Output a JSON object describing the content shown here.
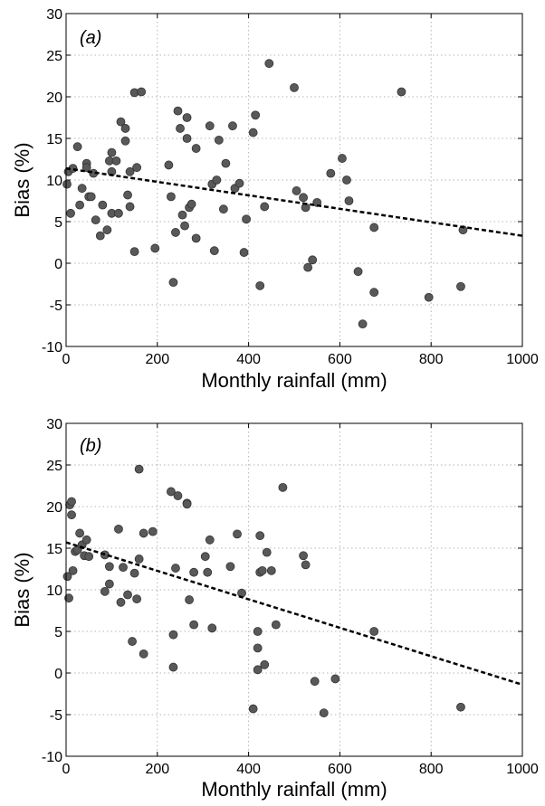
{
  "chart_data": [
    {
      "type": "scatter",
      "panel_label": "(a)",
      "xlabel": "Monthly rainfall (mm)",
      "ylabel": "Bias (%)",
      "xlim": [
        0,
        1000
      ],
      "ylim": [
        -10,
        30
      ],
      "xticks": [
        0,
        200,
        400,
        600,
        800,
        1000
      ],
      "yticks": [
        -10,
        -5,
        0,
        5,
        10,
        15,
        20,
        25,
        30
      ],
      "grid": true,
      "fit_line": [
        [
          0,
          11.4
        ],
        [
          1000,
          3.3
        ]
      ],
      "points": [
        [
          2,
          9.5
        ],
        [
          5,
          11
        ],
        [
          10,
          6
        ],
        [
          15,
          11.4
        ],
        [
          25,
          14
        ],
        [
          30,
          7
        ],
        [
          35,
          9
        ],
        [
          45,
          12
        ],
        [
          45,
          11.5
        ],
        [
          50,
          8
        ],
        [
          55,
          8
        ],
        [
          60,
          10.8
        ],
        [
          65,
          5.2
        ],
        [
          75,
          3.3
        ],
        [
          80,
          7
        ],
        [
          90,
          4
        ],
        [
          95,
          12.3
        ],
        [
          100,
          11
        ],
        [
          100,
          13.3
        ],
        [
          100,
          6
        ],
        [
          110,
          12.3
        ],
        [
          115,
          6
        ],
        [
          120,
          17
        ],
        [
          130,
          16.2
        ],
        [
          130,
          14.7
        ],
        [
          135,
          8.2
        ],
        [
          140,
          11
        ],
        [
          140,
          6.8
        ],
        [
          150,
          1.4
        ],
        [
          150,
          20.5
        ],
        [
          155,
          11.5
        ],
        [
          165,
          20.6
        ],
        [
          195,
          1.8
        ],
        [
          225,
          11.8
        ],
        [
          230,
          8
        ],
        [
          235,
          -2.3
        ],
        [
          240,
          3.7
        ],
        [
          245,
          18.3
        ],
        [
          250,
          16.2
        ],
        [
          255,
          5.8
        ],
        [
          260,
          4.5
        ],
        [
          265,
          17.5
        ],
        [
          265,
          15
        ],
        [
          270,
          6.7
        ],
        [
          275,
          7.1
        ],
        [
          285,
          13.8
        ],
        [
          285,
          3
        ],
        [
          315,
          16.5
        ],
        [
          320,
          9.5
        ],
        [
          325,
          1.5
        ],
        [
          330,
          10
        ],
        [
          335,
          14.8
        ],
        [
          345,
          6.5
        ],
        [
          350,
          12
        ],
        [
          365,
          16.5
        ],
        [
          370,
          9
        ],
        [
          380,
          9.6
        ],
        [
          390,
          1.3
        ],
        [
          395,
          5.3
        ],
        [
          410,
          15.7
        ],
        [
          415,
          17.8
        ],
        [
          425,
          -2.7
        ],
        [
          435,
          6.8
        ],
        [
          445,
          24
        ],
        [
          500,
          21.1
        ],
        [
          505,
          8.7
        ],
        [
          520,
          7.9
        ],
        [
          525,
          6.7
        ],
        [
          530,
          -0.5
        ],
        [
          540,
          0.4
        ],
        [
          550,
          7.3
        ],
        [
          580,
          10.8
        ],
        [
          605,
          12.6
        ],
        [
          615,
          10
        ],
        [
          620,
          7.5
        ],
        [
          640,
          -1
        ],
        [
          650,
          -7.3
        ],
        [
          675,
          4.3
        ],
        [
          675,
          -3.5
        ],
        [
          735,
          20.6
        ],
        [
          795,
          -4.1
        ],
        [
          865,
          -2.8
        ],
        [
          870,
          4
        ]
      ]
    },
    {
      "type": "scatter",
      "panel_label": "(b)",
      "xlabel": "Monthly rainfall (mm)",
      "ylabel": "Bias (%)",
      "xlim": [
        0,
        1000
      ],
      "ylim": [
        -10,
        30
      ],
      "xticks": [
        0,
        200,
        400,
        600,
        800,
        1000
      ],
      "yticks": [
        -10,
        -5,
        0,
        5,
        10,
        15,
        20,
        25,
        30
      ],
      "grid": true,
      "fit_line": [
        [
          0,
          15.7
        ],
        [
          1000,
          -1.4
        ]
      ],
      "points": [
        [
          3,
          11.6
        ],
        [
          6,
          9
        ],
        [
          8,
          20.2
        ],
        [
          12,
          20.6
        ],
        [
          12,
          19
        ],
        [
          15,
          12.3
        ],
        [
          20,
          14.6
        ],
        [
          25,
          14.8
        ],
        [
          30,
          16.8
        ],
        [
          35,
          15.4
        ],
        [
          40,
          14.1
        ],
        [
          45,
          16
        ],
        [
          50,
          14
        ],
        [
          85,
          14.2
        ],
        [
          85,
          9.8
        ],
        [
          95,
          12.8
        ],
        [
          95,
          10.7
        ],
        [
          115,
          17.3
        ],
        [
          120,
          8.5
        ],
        [
          125,
          12.7
        ],
        [
          135,
          9.4
        ],
        [
          145,
          3.8
        ],
        [
          150,
          12
        ],
        [
          155,
          8.9
        ],
        [
          160,
          13.7
        ],
        [
          160,
          24.5
        ],
        [
          170,
          2.3
        ],
        [
          170,
          16.8
        ],
        [
          190,
          17
        ],
        [
          230,
          21.8
        ],
        [
          235,
          0.7
        ],
        [
          235,
          4.6
        ],
        [
          240,
          12.6
        ],
        [
          245,
          21.3
        ],
        [
          265,
          20.4
        ],
        [
          265,
          20.3
        ],
        [
          270,
          8.8
        ],
        [
          280,
          12.1
        ],
        [
          280,
          5.8
        ],
        [
          305,
          14
        ],
        [
          310,
          12.1
        ],
        [
          315,
          16
        ],
        [
          320,
          5.4
        ],
        [
          360,
          12.8
        ],
        [
          375,
          16.7
        ],
        [
          385,
          9.6
        ],
        [
          410,
          -4.3
        ],
        [
          420,
          0.4
        ],
        [
          420,
          3
        ],
        [
          420,
          5
        ],
        [
          425,
          12.1
        ],
        [
          425,
          16.5
        ],
        [
          430,
          12.3
        ],
        [
          435,
          1
        ],
        [
          440,
          14.5
        ],
        [
          450,
          12.3
        ],
        [
          460,
          5.8
        ],
        [
          475,
          22.3
        ],
        [
          520,
          14.1
        ],
        [
          525,
          13
        ],
        [
          545,
          -1
        ],
        [
          565,
          -4.8
        ],
        [
          590,
          -0.7
        ],
        [
          675,
          5
        ],
        [
          865,
          -4.1
        ]
      ]
    }
  ]
}
